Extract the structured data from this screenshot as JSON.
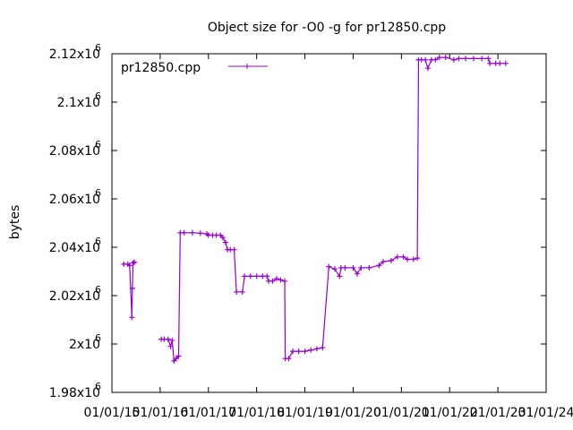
{
  "chart_data": {
    "type": "line",
    "title": "Object size for -O0 -g for pr12850.cpp",
    "xlabel": "",
    "ylabel": "bytes",
    "ylim": [
      1980000,
      2120000
    ],
    "yticks": [
      {
        "value": 1980000,
        "mantissa": "1.98x10",
        "exp": "6"
      },
      {
        "value": 2000000,
        "mantissa": "2x10",
        "exp": "6"
      },
      {
        "value": 2020000,
        "mantissa": "2.02x10",
        "exp": "6"
      },
      {
        "value": 2040000,
        "mantissa": "2.04x10",
        "exp": "6"
      },
      {
        "value": 2060000,
        "mantissa": "2.06x10",
        "exp": "6"
      },
      {
        "value": 2080000,
        "mantissa": "2.08x10",
        "exp": "6"
      },
      {
        "value": 2100000,
        "mantissa": "2.1x10",
        "exp": "6"
      },
      {
        "value": 2120000,
        "mantissa": "2.12x10",
        "exp": "6"
      }
    ],
    "xlim": [
      "2015-01-01",
      "2024-01-01"
    ],
    "xticks": [
      "01/01/15",
      "01/01/16",
      "01/01/17",
      "01/01/18",
      "01/01/19",
      "01/01/20",
      "01/01/21",
      "01/01/22",
      "01/01/23",
      "01/01/24"
    ],
    "legend": {
      "position": "top-left"
    },
    "series": [
      {
        "name": "pr12850.cpp",
        "color": "#9400d3",
        "segments": [
          [
            [
              "2015-04-01",
              2033000
            ],
            [
              "2015-05-01",
              2033000
            ],
            [
              "2015-05-15",
              2032500
            ],
            [
              "2015-06-01",
              2011000
            ],
            [
              "2015-06-05",
              2023000
            ],
            [
              "2015-06-10",
              2033500
            ],
            [
              "2015-06-20",
              2033800
            ]
          ],
          [
            [
              "2016-01-10",
              2002000
            ],
            [
              "2016-02-01",
              2002000
            ],
            [
              "2016-03-01",
              2002000
            ],
            [
              "2016-03-20",
              1999000
            ],
            [
              "2016-04-01",
              2001500
            ],
            [
              "2016-04-15",
              1993000
            ],
            [
              "2016-05-01",
              1994000
            ],
            [
              "2016-05-20",
              1995000
            ],
            [
              "2016-06-01",
              2046000
            ],
            [
              "2016-07-01",
              2046000
            ],
            [
              "2016-09-01",
              2046000
            ],
            [
              "2016-11-01",
              2045800
            ],
            [
              "2016-12-20",
              2045500
            ],
            [
              "2017-01-01",
              2045000
            ],
            [
              "2017-02-01",
              2045000
            ],
            [
              "2017-03-01",
              2045000
            ],
            [
              "2017-04-01",
              2045000
            ],
            [
              "2017-04-20",
              2044000
            ],
            [
              "2017-05-10",
              2042000
            ],
            [
              "2017-05-25",
              2039000
            ],
            [
              "2017-06-15",
              2039000
            ],
            [
              "2017-07-15",
              2039000
            ],
            [
              "2017-08-01",
              2021500
            ],
            [
              "2017-09-15",
              2021500
            ],
            [
              "2017-10-01",
              2028000
            ],
            [
              "2017-11-15",
              2028000
            ],
            [
              "2018-01-01",
              2028000
            ],
            [
              "2018-02-15",
              2028000
            ],
            [
              "2018-03-20",
              2028000
            ],
            [
              "2018-04-01",
              2026000
            ],
            [
              "2018-05-01",
              2026000
            ],
            [
              "2018-06-01",
              2027000
            ],
            [
              "2018-07-01",
              2026500
            ],
            [
              "2018-08-01",
              2026000
            ],
            [
              "2018-08-05",
              1994000
            ],
            [
              "2018-09-01",
              1994000
            ],
            [
              "2018-10-01",
              1997000
            ],
            [
              "2018-11-15",
              1997000
            ],
            [
              "2019-01-01",
              1997000
            ],
            [
              "2019-02-15",
              1997500
            ],
            [
              "2019-04-01",
              1998000
            ],
            [
              "2019-05-15",
              1998500
            ],
            [
              "2019-07-01",
              2032000
            ],
            [
              "2019-08-15",
              2031000
            ],
            [
              "2019-09-20",
              2028000
            ],
            [
              "2019-10-01",
              2031500
            ],
            [
              "2019-11-01",
              2031500
            ],
            [
              "2020-01-01",
              2031500
            ],
            [
              "2020-02-01",
              2029000
            ],
            [
              "2020-03-01",
              2031500
            ],
            [
              "2020-05-01",
              2031500
            ],
            [
              "2020-07-15",
              2032500
            ],
            [
              "2020-08-15",
              2034000
            ],
            [
              "2020-10-15",
              2034500
            ],
            [
              "2020-12-01",
              2036000
            ],
            [
              "2021-01-15",
              2036000
            ],
            [
              "2021-02-15",
              2035000
            ],
            [
              "2021-04-01",
              2035000
            ],
            [
              "2021-05-01",
              2035500
            ],
            [
              "2021-05-10",
              2117500
            ],
            [
              "2021-06-01",
              2117500
            ],
            [
              "2021-07-01",
              2117500
            ],
            [
              "2021-07-20",
              2114000
            ],
            [
              "2021-08-15",
              2117500
            ],
            [
              "2021-09-15",
              2117500
            ],
            [
              "2021-10-15",
              2118500
            ],
            [
              "2021-12-01",
              2118500
            ],
            [
              "2022-02-01",
              2117500
            ],
            [
              "2022-03-10",
              2118000
            ],
            [
              "2022-05-01",
              2118000
            ],
            [
              "2022-07-01",
              2118000
            ],
            [
              "2022-09-01",
              2118000
            ],
            [
              "2022-10-20",
              2118000
            ],
            [
              "2022-11-01",
              2116000
            ],
            [
              "2022-12-15",
              2116000
            ],
            [
              "2023-01-15",
              2116000
            ],
            [
              "2023-03-01",
              2116000
            ]
          ]
        ]
      }
    ]
  }
}
